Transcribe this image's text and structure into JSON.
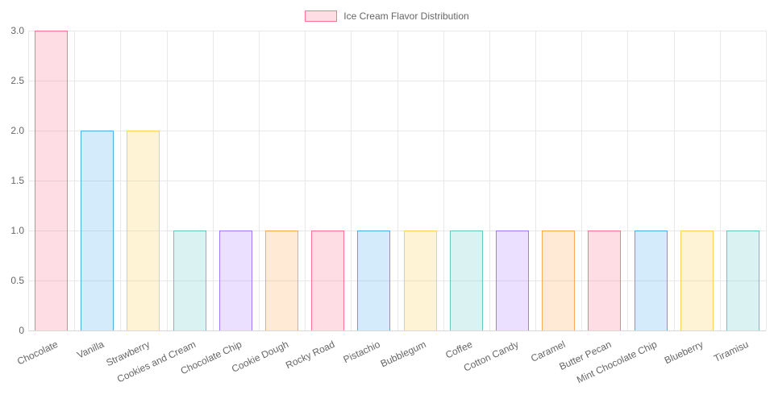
{
  "chart_data": {
    "type": "bar",
    "title": "Ice Cream Flavor Distribution",
    "legend": {
      "position": "top",
      "label": "Ice Cream Flavor Distribution"
    },
    "categories": [
      "Chocolate",
      "Vanilla",
      "Strawberry",
      "Cookies and Cream",
      "Chocolate Chip",
      "Cookie Dough",
      "Rocky Road",
      "Pistachio",
      "Bubblegum",
      "Coffee",
      "Cotton Candy",
      "Caramel",
      "Butter Pecan",
      "Mint Chocolate Chip",
      "Blueberry",
      "Tiramisu"
    ],
    "values": [
      3,
      2,
      2,
      1,
      1,
      1,
      1,
      1,
      1,
      1,
      1,
      1,
      1,
      1,
      1,
      1
    ],
    "xlabel": "",
    "ylabel": "",
    "ylim": [
      0,
      3
    ],
    "yticks": [
      0,
      0.5,
      1,
      1.5,
      2,
      2.5,
      3
    ],
    "ytick_labels": [
      "0",
      "0.5",
      "1.0",
      "1.5",
      "2.0",
      "2.5",
      "3.0"
    ],
    "grid": true,
    "palette": [
      {
        "name": "pink",
        "fill": "rgba(255,99,132,0.22)",
        "border": "rgba(255,99,132,0.85)"
      },
      {
        "name": "blue",
        "fill": "rgba(54,162,235,0.22)",
        "border": "rgba(54,162,235,0.85)"
      },
      {
        "name": "yellow",
        "fill": "rgba(255,206,86,0.25)",
        "border": "rgba(255,206,86,0.95)"
      },
      {
        "name": "teal",
        "fill": "rgba(75,192,192,0.2)",
        "border": "rgba(75,192,192,0.85)"
      },
      {
        "name": "purple",
        "fill": "rgba(153,102,255,0.2)",
        "border": "rgba(153,102,255,0.85)"
      },
      {
        "name": "orange",
        "fill": "rgba(255,159,64,0.22)",
        "border": "rgba(255,159,64,0.85)"
      }
    ],
    "colors_hex": {
      "pink": "#ff6384",
      "blue": "#36a2eb",
      "yellow": "#ffce56",
      "teal": "#4bc0c0",
      "purple": "#9966ff",
      "orange": "#ff9f40",
      "axis_text": "#666666",
      "gridline": "#e8e8e8"
    }
  }
}
